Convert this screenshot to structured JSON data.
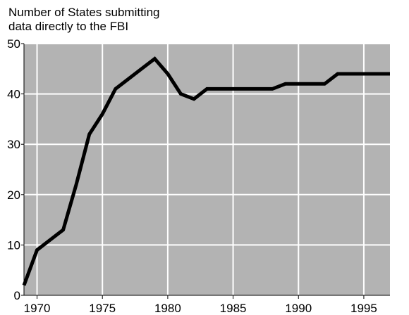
{
  "chart_data": {
    "type": "line",
    "title_lines": [
      "Number of States submitting",
      "data directly to the FBI"
    ],
    "xlabel": "",
    "ylabel": "",
    "xlim": [
      1969,
      1997
    ],
    "ylim": [
      0,
      50
    ],
    "x_ticks": [
      1970,
      1975,
      1980,
      1985,
      1990,
      1995
    ],
    "y_ticks": [
      0,
      10,
      20,
      30,
      40,
      50
    ],
    "grid": true,
    "colors": {
      "plot_background": "#b3b3b3",
      "grid": "#ffffff",
      "line": "#000000",
      "axis": "#000000"
    },
    "series": [
      {
        "x": [
          1969,
          1970,
          1971,
          1972,
          1973,
          1974,
          1975,
          1976,
          1977,
          1978,
          1979,
          1980,
          1981,
          1982,
          1983,
          1984,
          1985,
          1986,
          1987,
          1988,
          1989,
          1990,
          1991,
          1992,
          1993,
          1994,
          1995,
          1996,
          1997
        ],
        "values": [
          2,
          9,
          11,
          13,
          22,
          32,
          36,
          41,
          43,
          45,
          47,
          44,
          40,
          39,
          41,
          41,
          41,
          41,
          41,
          41,
          42,
          42,
          42,
          42,
          44,
          44,
          44,
          44,
          44
        ]
      }
    ]
  }
}
